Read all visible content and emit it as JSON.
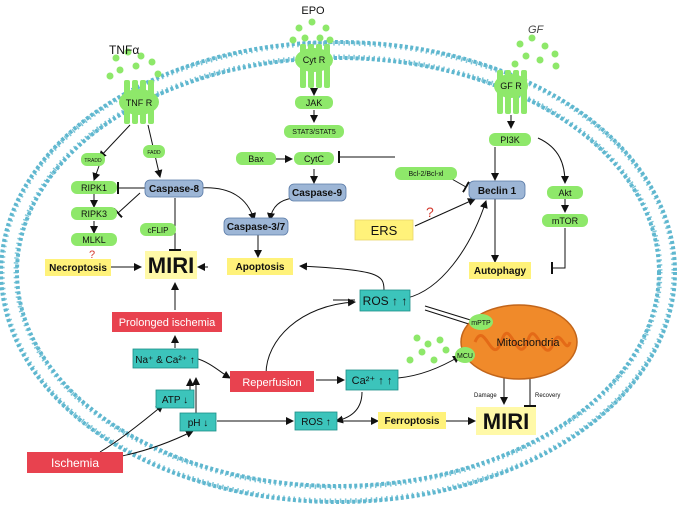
{
  "colors": {
    "green": "#8ee86a",
    "green_dark": "#4fae2f",
    "blue_node": "#9db6d6",
    "teal": "#3cc4bb",
    "yellow": "#fff27a",
    "red": "#e8424f",
    "mito": "#f08a2a",
    "membrane": "#5fb7cf"
  },
  "ligands": {
    "tnf": "TNFα",
    "epo": "EPO",
    "gf": "GF"
  },
  "receptors": {
    "tnf": "TNF R",
    "cyt": "Cyt R",
    "gf": "GF R"
  },
  "nodes": {
    "tradd": "TRADD",
    "fadd": "FADD",
    "ripk1": "RIPK1",
    "ripk3": "RIPK3",
    "mlkl": "MLKL",
    "caspase8": "Caspase-8",
    "cflip": "cFLIP",
    "jak": "JAK",
    "stat": "STAT3/STAT5",
    "bax": "Bax",
    "cytc": "CytC",
    "caspase9": "Caspase-9",
    "caspase37": "Caspase-3/7",
    "bcl": "Bcl-2/Bcl-xl",
    "pi3k": "PI3K",
    "beclin": "Beclin 1",
    "akt": "Akt",
    "mtor": "mTOR",
    "ers": "ERS",
    "question": "?",
    "necroptosis": "Necroptosis",
    "miri_main": "MIRI",
    "apoptosis": "Apoptosis",
    "autophagy": "Autophagy",
    "ros_top": "ROS ↑ ↑",
    "prolonged": "Prolonged ischemia",
    "na_ca": "Na⁺ & Ca²⁺ ↑",
    "reperfusion": "Reperfusion",
    "ca": "Ca²⁺ ↑ ↑",
    "atp": "ATP ↓",
    "ph": "pH ↓",
    "ros_bottom": "ROS ↑",
    "ferroptosis": "Ferroptosis",
    "miri_bottom": "MIRI",
    "ischemia": "Ischemia",
    "mitochondria": "Mitochondria",
    "mptp": "mPTP",
    "mcu": "MCU",
    "damage": "Damage",
    "recovery": "Recovery"
  }
}
